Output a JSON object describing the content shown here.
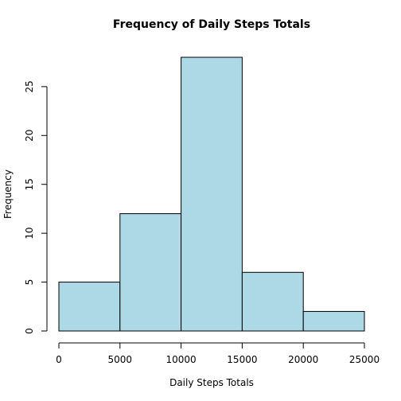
{
  "chart_data": {
    "type": "bar",
    "title": "Frequency of Daily Steps Totals",
    "xlabel": "Daily Steps Totals",
    "ylabel": "Frequency",
    "bins": [
      {
        "from": 0,
        "to": 5000,
        "count": 5
      },
      {
        "from": 5000,
        "to": 10000,
        "count": 12
      },
      {
        "from": 10000,
        "to": 15000,
        "count": 28
      },
      {
        "from": 15000,
        "to": 20000,
        "count": 6
      },
      {
        "from": 20000,
        "to": 25000,
        "count": 2
      }
    ],
    "x_ticks": [
      "0",
      "5000",
      "10000",
      "15000",
      "20000",
      "25000"
    ],
    "y_ticks": [
      "0",
      "5",
      "10",
      "15",
      "20",
      "25"
    ],
    "xlim": [
      0,
      25000
    ],
    "ylim": [
      0,
      28
    ],
    "bar_color": "#add8e6",
    "grid": false,
    "legend": "none"
  }
}
